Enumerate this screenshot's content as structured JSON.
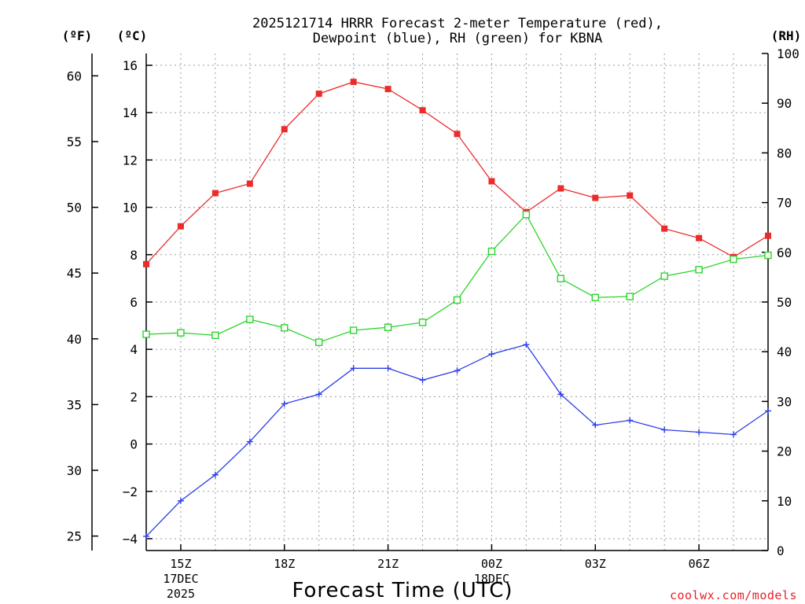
{
  "chart_data": {
    "type": "line",
    "title_line1": "2025121714 HRRR Forecast 2-meter Temperature (red),",
    "title_line2": "Dewpoint (blue), RH (green) for KBNA",
    "unit_f": "(ºF)",
    "unit_c": "(ºC)",
    "unit_rh": "(RH)",
    "xlabel": "Forecast Time (UTC)",
    "credit": "coolwx.com/models",
    "x_hours": [
      14,
      15,
      16,
      17,
      18,
      19,
      20,
      21,
      22,
      23,
      24,
      25,
      26,
      27,
      28,
      29,
      30,
      31,
      32
    ],
    "x_range": [
      14,
      32
    ],
    "c_range": [
      -4.5,
      16.5
    ],
    "f_range": [
      23.9,
      61.7
    ],
    "rh_range": [
      0,
      100
    ],
    "c_ticks": [
      "16",
      "14",
      "12",
      "10",
      "8",
      "6",
      "4",
      "2",
      "0",
      "−2",
      "−4"
    ],
    "c_tick_values": [
      16,
      14,
      12,
      10,
      8,
      6,
      4,
      2,
      0,
      -2,
      -4
    ],
    "f_ticks": [
      "60",
      "55",
      "50",
      "45",
      "40",
      "35",
      "30",
      "25"
    ],
    "f_tick_values": [
      60,
      55,
      50,
      45,
      40,
      35,
      30,
      25
    ],
    "rh_ticks": [
      "100",
      "90",
      "80",
      "70",
      "60",
      "50",
      "40",
      "30",
      "20",
      "10",
      "0"
    ],
    "rh_tick_values": [
      100,
      90,
      80,
      70,
      60,
      50,
      40,
      30,
      20,
      10,
      0
    ],
    "x_ticks": [
      {
        "hour": 15,
        "label": "15Z",
        "date": "17DEC",
        "year": "2025"
      },
      {
        "hour": 18,
        "label": "18Z"
      },
      {
        "hour": 21,
        "label": "21Z"
      },
      {
        "hour": 24,
        "label": "00Z",
        "date": "18DEC"
      },
      {
        "hour": 27,
        "label": "03Z"
      },
      {
        "hour": 30,
        "label": "06Z"
      }
    ],
    "series": [
      {
        "name": "Temperature",
        "unit": "C",
        "color": "#ec2b2b",
        "marker": "filled-square",
        "values": [
          7.6,
          9.2,
          10.6,
          11.0,
          13.3,
          14.8,
          15.3,
          15.0,
          14.1,
          13.1,
          11.1,
          9.8,
          10.8,
          10.4,
          10.5,
          9.1,
          8.7,
          7.9,
          8.8
        ]
      },
      {
        "name": "Dewpoint",
        "unit": "C",
        "color": "#2b3ee8",
        "marker": "plus",
        "values": [
          -3.9,
          -2.4,
          -1.3,
          0.1,
          1.7,
          2.1,
          3.2,
          3.2,
          2.7,
          3.1,
          3.8,
          4.2,
          2.1,
          0.8,
          1.0,
          0.6,
          0.5,
          0.4,
          1.4
        ]
      },
      {
        "name": "RH",
        "unit": "%",
        "color": "#2bd42b",
        "marker": "open-square",
        "values": [
          43.5,
          43.8,
          43.3,
          46.5,
          44.8,
          41.9,
          44.3,
          44.9,
          45.9,
          50.4,
          60.2,
          67.6,
          54.7,
          50.9,
          51.1,
          55.2,
          56.5,
          58.6,
          59.4
        ]
      }
    ]
  }
}
